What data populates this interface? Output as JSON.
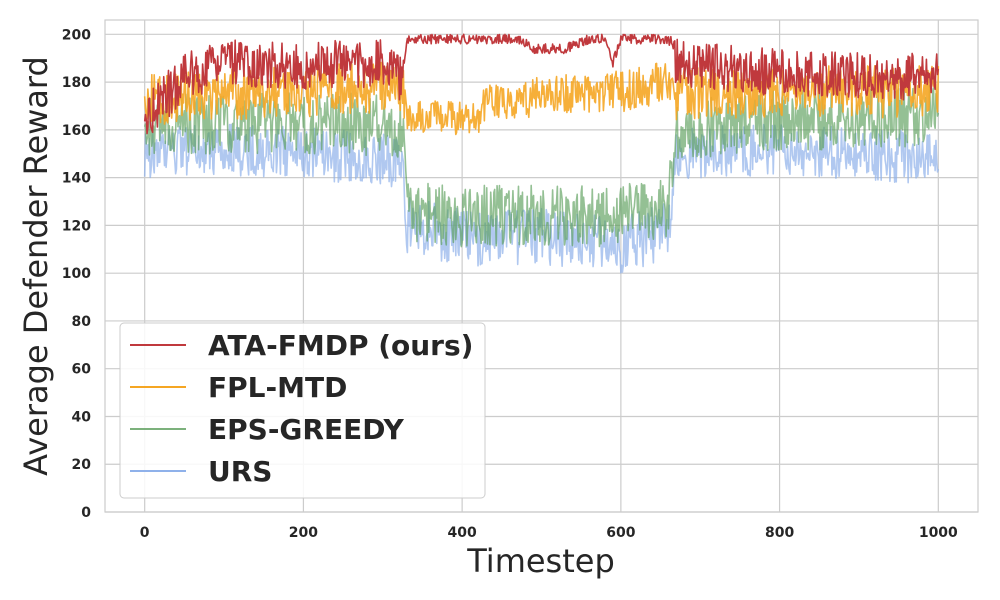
{
  "chart_data": {
    "type": "line",
    "title": "",
    "xlabel": "Timestep",
    "ylabel": "Average Defender Reward",
    "xlim": [
      -50,
      1050
    ],
    "ylim": [
      0,
      206
    ],
    "xticks": [
      0,
      200,
      400,
      600,
      800,
      1000
    ],
    "yticks": [
      0,
      20,
      40,
      60,
      80,
      100,
      120,
      140,
      160,
      180,
      200
    ],
    "grid": true,
    "legend_position": "lower-left",
    "timesteps": 1000,
    "series": [
      {
        "name": "ATA-FMDP (ours)",
        "color": "#c0393d",
        "opacity": 1.0,
        "profile": [
          [
            0,
            165
          ],
          [
            50,
            182
          ],
          [
            100,
            188
          ],
          [
            200,
            187
          ],
          [
            300,
            188
          ],
          [
            325,
            180
          ],
          [
            330,
            198
          ],
          [
            470,
            198
          ],
          [
            490,
            194
          ],
          [
            530,
            194
          ],
          [
            560,
            198
          ],
          [
            580,
            198
          ],
          [
            590,
            188
          ],
          [
            600,
            198
          ],
          [
            660,
            198
          ],
          [
            670,
            188
          ],
          [
            800,
            184
          ],
          [
            900,
            183
          ],
          [
            1000,
            182
          ]
        ],
        "spread": [
          [
            0,
            10
          ],
          [
            325,
            10
          ],
          [
            330,
            2
          ],
          [
            660,
            2
          ],
          [
            670,
            10
          ],
          [
            1000,
            10
          ]
        ]
      },
      {
        "name": "FPL-MTD",
        "color": "#f5a623",
        "opacity": 0.9,
        "profile": [
          [
            0,
            172
          ],
          [
            100,
            175
          ],
          [
            200,
            176
          ],
          [
            300,
            178
          ],
          [
            325,
            178
          ],
          [
            330,
            166
          ],
          [
            420,
            165
          ],
          [
            430,
            172
          ],
          [
            480,
            172
          ],
          [
            500,
            175
          ],
          [
            550,
            175
          ],
          [
            580,
            176
          ],
          [
            600,
            176
          ],
          [
            660,
            180
          ],
          [
            670,
            175
          ],
          [
            800,
            176
          ],
          [
            1000,
            176
          ]
        ],
        "spread": [
          [
            0,
            11
          ],
          [
            325,
            11
          ],
          [
            330,
            7
          ],
          [
            660,
            9
          ],
          [
            670,
            11
          ],
          [
            1000,
            11
          ]
        ]
      },
      {
        "name": "EPS-GREEDY",
        "color": "#5b9e5b",
        "opacity": 0.65,
        "profile": [
          [
            0,
            162
          ],
          [
            100,
            163
          ],
          [
            200,
            163
          ],
          [
            300,
            162
          ],
          [
            325,
            160
          ],
          [
            330,
            125
          ],
          [
            400,
            124
          ],
          [
            500,
            124
          ],
          [
            600,
            124
          ],
          [
            660,
            128
          ],
          [
            670,
            160
          ],
          [
            800,
            164
          ],
          [
            1000,
            166
          ]
        ],
        "spread": [
          [
            0,
            13
          ],
          [
            325,
            13
          ],
          [
            330,
            13
          ],
          [
            660,
            13
          ],
          [
            670,
            13
          ],
          [
            1000,
            13
          ]
        ]
      },
      {
        "name": "URS",
        "color": "#8fb1ea",
        "opacity": 0.7,
        "profile": [
          [
            0,
            150
          ],
          [
            100,
            152
          ],
          [
            200,
            150
          ],
          [
            300,
            148
          ],
          [
            325,
            145
          ],
          [
            330,
            120
          ],
          [
            400,
            115
          ],
          [
            500,
            115
          ],
          [
            600,
            112
          ],
          [
            660,
            118
          ],
          [
            670,
            150
          ],
          [
            800,
            152
          ],
          [
            1000,
            148
          ]
        ],
        "spread": [
          [
            0,
            11
          ],
          [
            325,
            11
          ],
          [
            330,
            12
          ],
          [
            660,
            12
          ],
          [
            670,
            11
          ],
          [
            1000,
            11
          ]
        ]
      }
    ]
  }
}
